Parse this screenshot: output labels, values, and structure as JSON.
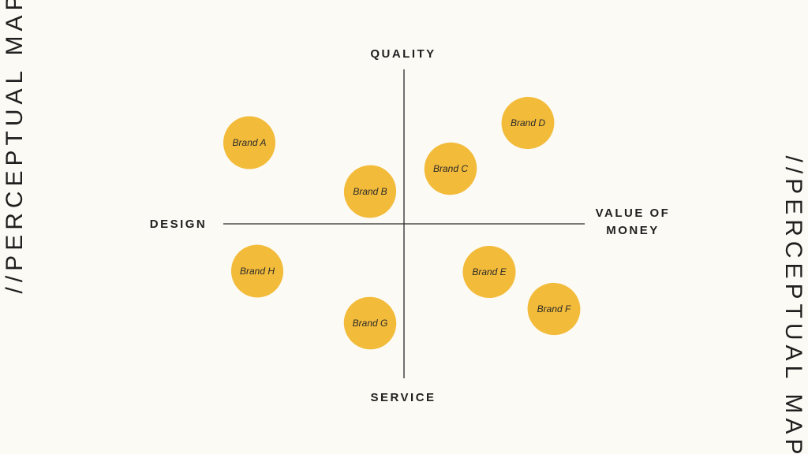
{
  "side_label_left": "//PERCEPTUAL MAP",
  "side_label_right": "//PERCEPTUAL MAP",
  "axes": {
    "top": "QUALITY",
    "bottom": "SERVICE",
    "left": "DESIGN",
    "right": [
      "VALUE OF",
      "MONEY"
    ]
  },
  "brands": [
    "Brand A",
    "Brand B",
    "Brand C",
    "Brand D",
    "Brand E",
    "Brand F",
    "Brand G",
    "Brand H"
  ]
}
